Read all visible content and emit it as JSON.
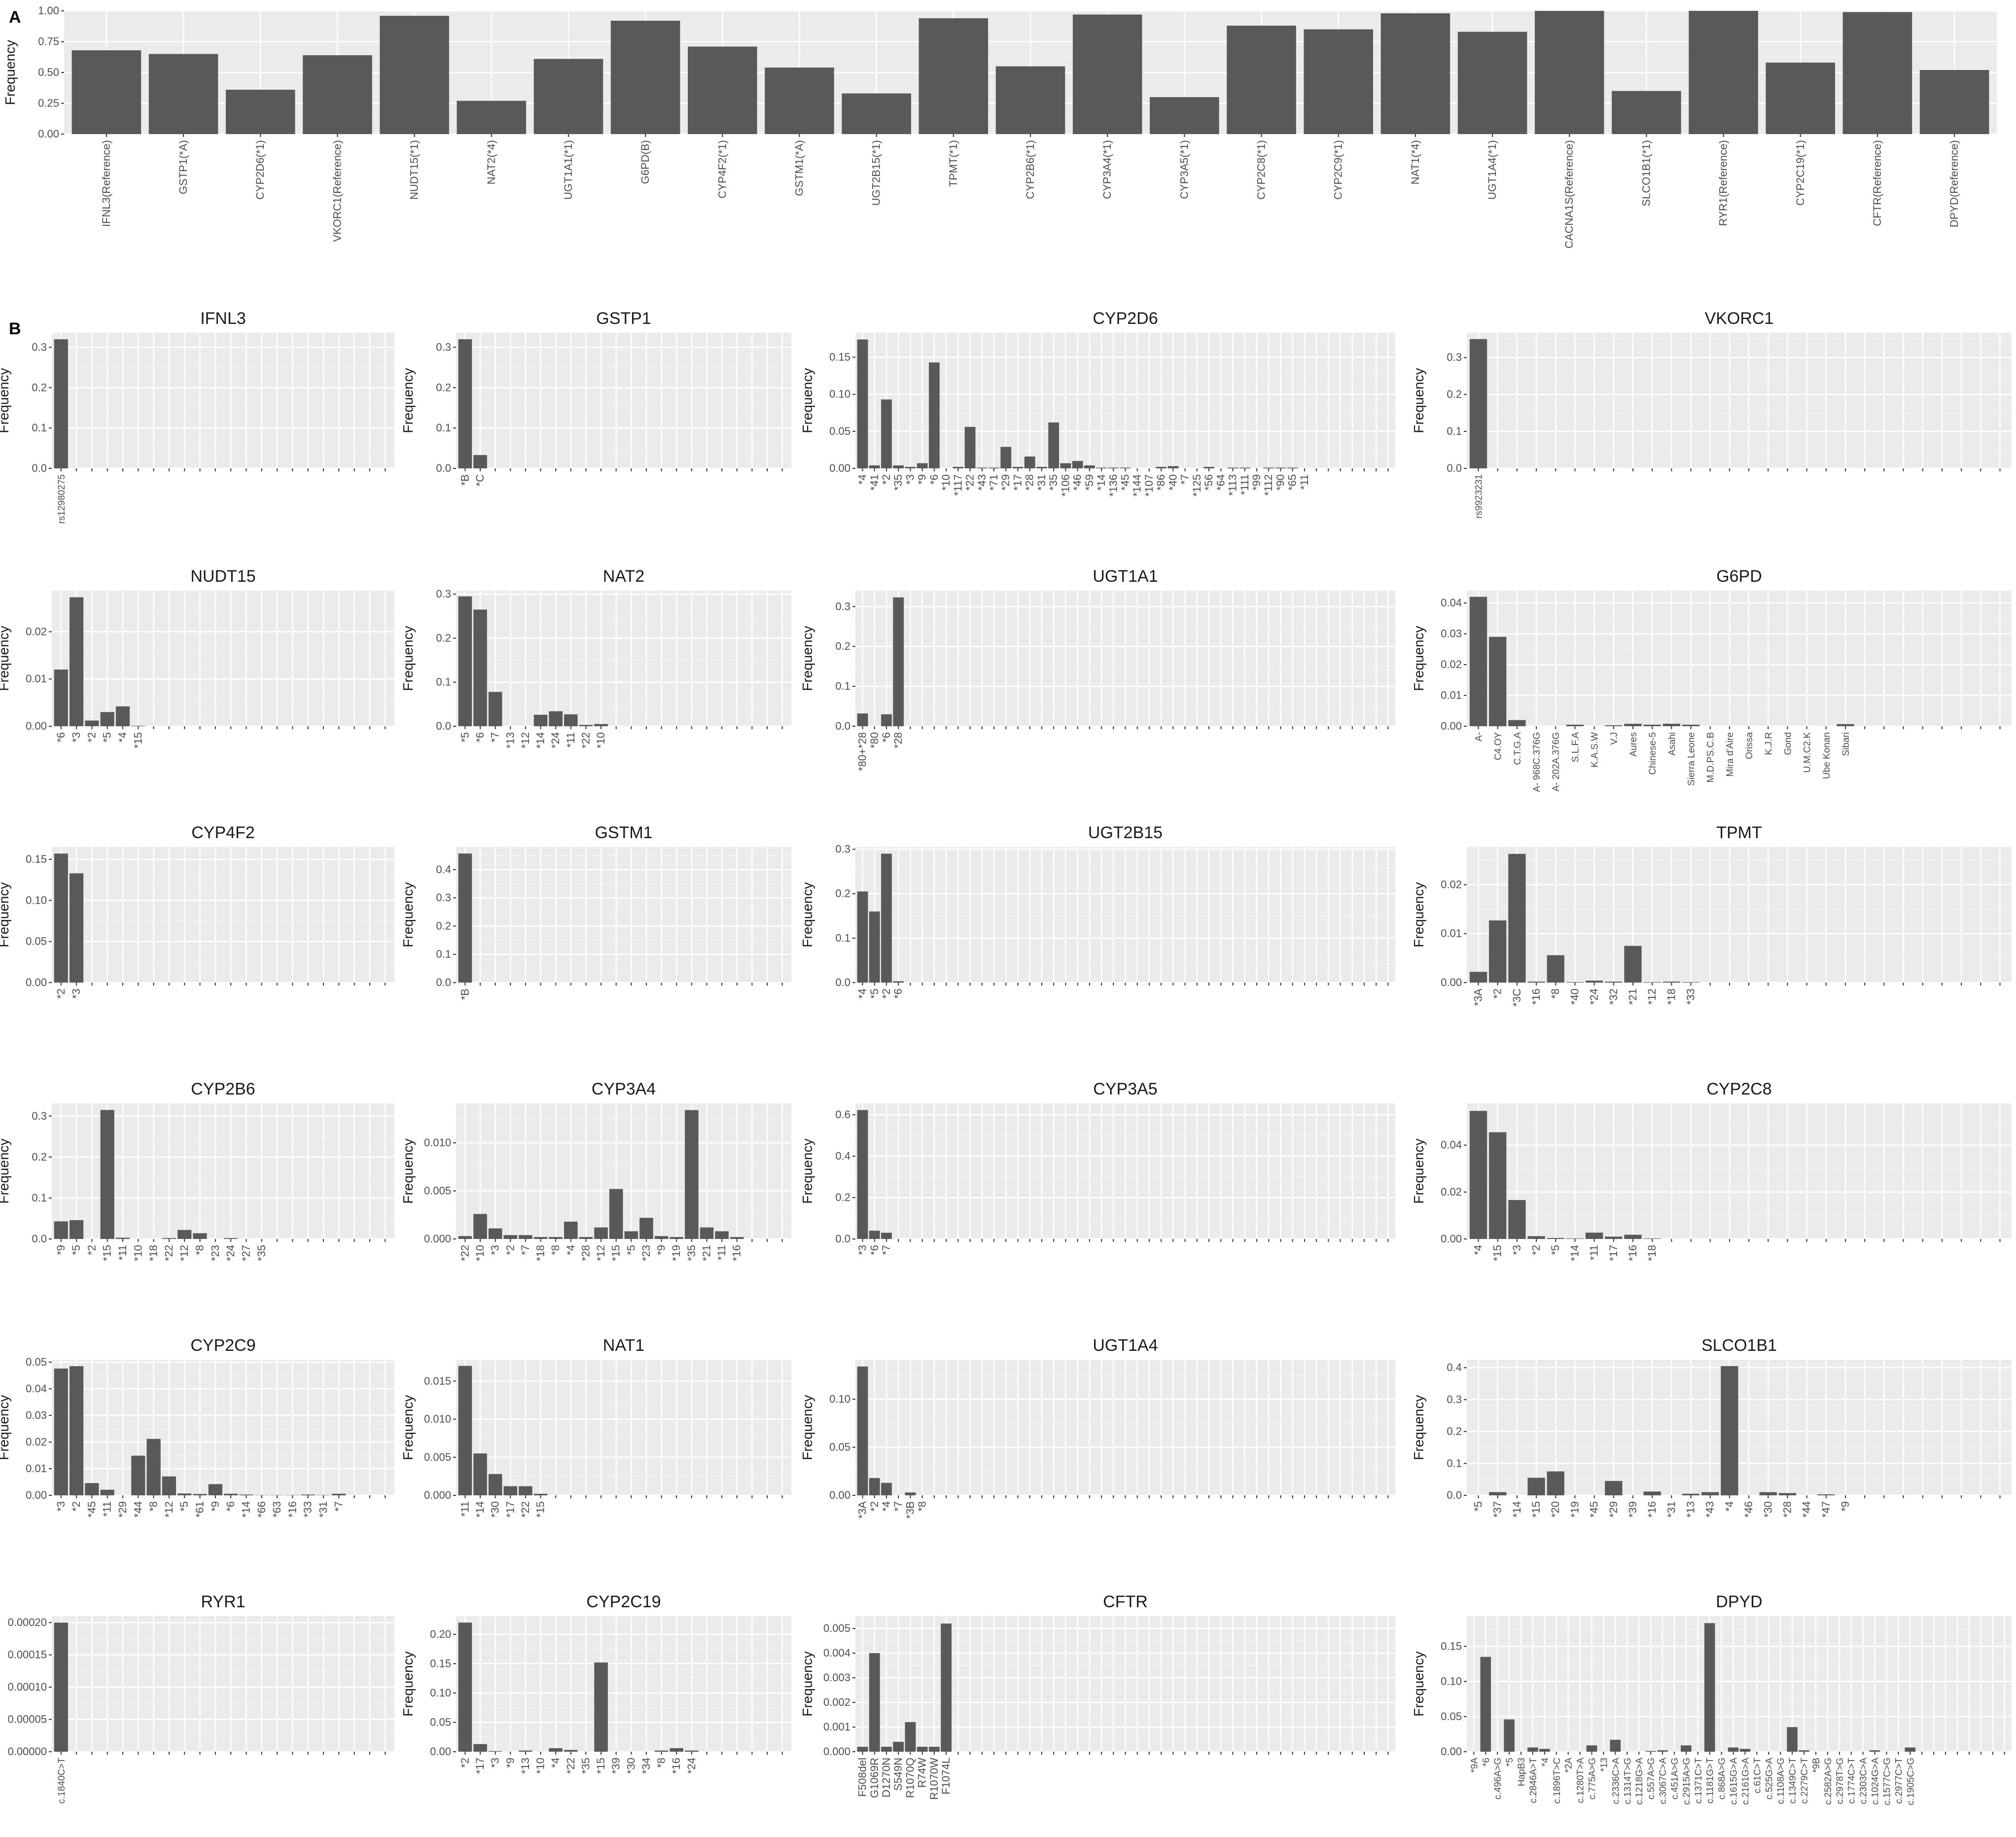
{
  "tags": {
    "a": "A",
    "b": "B"
  },
  "chart_data": [
    {
      "type": "bar",
      "panel": "A",
      "title": "",
      "ylabel": "Frequency",
      "ylim": [
        0,
        1.0
      ],
      "yticks": [
        0.0,
        0.25,
        0.5,
        0.75,
        1.0
      ],
      "ytick_labels": [
        "0.00",
        "0.25",
        "0.50",
        "0.75",
        "1.00"
      ],
      "categories": [
        "IFNL3(Reference)",
        "GSTP1(*A)",
        "CYP2D6(*1)",
        "VKORC1(Reference)",
        "NUDT15(*1)",
        "NAT2(*4)",
        "UGT1A1(*1)",
        "G6PD(B)",
        "CYP4F2(*1)",
        "GSTM1(*A)",
        "UGT2B15(*1)",
        "TPMT(*1)",
        "CYP2B6(*1)",
        "CYP3A4(*1)",
        "CYP3A5(*1)",
        "CYP2C8(*1)",
        "CYP2C9(*1)",
        "NAT1(*4)",
        "UGT1A4(*1)",
        "CACNA1S(Reference)",
        "SLCO1B1(*1)",
        "RYR1(Reference)",
        "CYP2C19(*1)",
        "CFTR(Reference)",
        "DPYD(Reference)"
      ],
      "values": [
        0.68,
        0.65,
        0.36,
        0.64,
        0.96,
        0.27,
        0.61,
        0.92,
        0.71,
        0.54,
        0.33,
        0.94,
        0.55,
        0.97,
        0.3,
        0.88,
        0.85,
        0.98,
        0.83,
        1.0,
        0.35,
        1.0,
        0.58,
        0.99,
        0.52
      ]
    },
    {
      "type": "bar",
      "title": "IFNL3",
      "ylabel": "Frequency",
      "ylim": [
        0,
        0.336
      ],
      "yticks": [
        0.0,
        0.1,
        0.2,
        0.3
      ],
      "ytick_labels": [
        "0.0",
        "0.1",
        "0.2",
        "0.3"
      ],
      "slots": 22,
      "categories": [
        "rs12980275"
      ],
      "values": [
        0.32
      ]
    },
    {
      "type": "bar",
      "title": "GSTP1",
      "ylabel": "Frequency",
      "ylim": [
        0,
        0.336
      ],
      "yticks": [
        0.0,
        0.1,
        0.2,
        0.3
      ],
      "ytick_labels": [
        "0.0",
        "0.1",
        "0.2",
        "0.3"
      ],
      "slots": 22,
      "categories": [
        "*B",
        "*C"
      ],
      "values": [
        0.32,
        0.033
      ]
    },
    {
      "type": "bar",
      "title": "CYP2D6",
      "ylabel": "Frequency",
      "ylim": [
        0,
        0.183
      ],
      "yticks": [
        0.0,
        0.05,
        0.1,
        0.15
      ],
      "ytick_labels": [
        "0.00",
        "0.05",
        "0.10",
        "0.15"
      ],
      "slots": 45,
      "categories": [
        "*4",
        "*41",
        "*2",
        "*35",
        "*3",
        "*9",
        "*6",
        "*10",
        "*117",
        "*22",
        "*43",
        "*71",
        "*29",
        "*17",
        "*28",
        "*31",
        "*35",
        "*106",
        "*46",
        "*59",
        "*14",
        "*136",
        "*45",
        "*144",
        "*107",
        "*86",
        "*40",
        "*7",
        "*125",
        "*56",
        "*64",
        "*113",
        "*111",
        "*99",
        "*112",
        "*90",
        "*65",
        "*11"
      ],
      "values": [
        0.174,
        0.004,
        0.093,
        0.004,
        0.002,
        0.007,
        0.143,
        0.0,
        0.002,
        0.056,
        0.001,
        0.001,
        0.029,
        0.002,
        0.016,
        0.002,
        0.062,
        0.007,
        0.01,
        0.004,
        0.001,
        0.001,
        0.001,
        0.0,
        0.0,
        0.002,
        0.003,
        0.0,
        0.0,
        0.002,
        0.0,
        0.001,
        0.001,
        0.0,
        0.001,
        0.001,
        0.001,
        0.0
      ]
    },
    {
      "type": "bar",
      "title": "VKORC1",
      "ylabel": "Frequency",
      "ylim": [
        0,
        0.367
      ],
      "yticks": [
        0.0,
        0.1,
        0.2,
        0.3
      ],
      "ytick_labels": [
        "0.0",
        "0.1",
        "0.2",
        "0.3"
      ],
      "slots": 28,
      "categories": [
        "rs9923231"
      ],
      "values": [
        0.35
      ]
    },
    {
      "type": "bar",
      "title": "NUDT15",
      "ylabel": "Frequency",
      "ylim": [
        0,
        0.0287
      ],
      "yticks": [
        0.0,
        0.01,
        0.02
      ],
      "ytick_labels": [
        "0.00",
        "0.01",
        "0.02"
      ],
      "slots": 22,
      "categories": [
        "*6",
        "*3",
        "*2",
        "*5",
        "*4",
        "*15"
      ],
      "values": [
        0.012,
        0.0273,
        0.0012,
        0.003,
        0.0042,
        0.0001
      ]
    },
    {
      "type": "bar",
      "title": "NAT2",
      "ylabel": "Frequency",
      "ylim": [
        0,
        0.308
      ],
      "yticks": [
        0.0,
        0.1,
        0.2,
        0.3
      ],
      "ytick_labels": [
        "0.0",
        "0.1",
        "0.2",
        "0.3"
      ],
      "slots": 22,
      "categories": [
        "*5",
        "*6",
        "*7",
        "*13",
        "*12",
        "*14",
        "*24",
        "*11",
        "*22",
        "*10"
      ],
      "values": [
        0.295,
        0.265,
        0.078,
        0.0,
        0.0,
        0.026,
        0.034,
        0.027,
        0.003,
        0.005
      ]
    },
    {
      "type": "bar",
      "title": "UGT1A1",
      "ylabel": "Frequency",
      "ylim": [
        0,
        0.34
      ],
      "yticks": [
        0.0,
        0.1,
        0.2,
        0.3
      ],
      "ytick_labels": [
        "0.0",
        "0.1",
        "0.2",
        "0.3"
      ],
      "slots": 45,
      "categories": [
        "*80+*28",
        "*80",
        "*6",
        "*28"
      ],
      "values": [
        0.032,
        0.0,
        0.03,
        0.323
      ]
    },
    {
      "type": "bar",
      "title": "G6PD",
      "ylabel": "Frequency",
      "ylim": [
        0,
        0.044
      ],
      "yticks": [
        0.0,
        0.01,
        0.02,
        0.03,
        0.04
      ],
      "ytick_labels": [
        "0.00",
        "0.01",
        "0.02",
        "0.03",
        "0.04"
      ],
      "slots": 28,
      "categories": [
        "A-",
        "C4.OY",
        "C.T.G.A",
        "A- 968C.376G",
        "A- 202A.376G",
        "S.L.F.A",
        "K.A.S.W",
        "V.J",
        "Aures",
        "Chinese-5",
        "Asahi",
        "Sierra Leone",
        "M.D.PS.C.B",
        "Mira d'Aire",
        "Orissa",
        "K.J.R",
        "Gond",
        "U.M.C2.K",
        "Ube Konan",
        "Sibari"
      ],
      "values": [
        0.042,
        0.029,
        0.002,
        0.0,
        0.0,
        0.0005,
        0.0,
        0.0003,
        0.0008,
        0.0005,
        0.0008,
        0.0005,
        0.0,
        0.0,
        0.0,
        0.0,
        0.0,
        0.0,
        0.0,
        0.0007
      ]
    },
    {
      "type": "bar",
      "title": "CYP4F2",
      "ylabel": "Frequency",
      "ylim": [
        0,
        0.165
      ],
      "yticks": [
        0.0,
        0.05,
        0.1,
        0.15
      ],
      "ytick_labels": [
        "0.00",
        "0.05",
        "0.10",
        "0.15"
      ],
      "slots": 22,
      "categories": [
        "*2",
        "*3"
      ],
      "values": [
        0.157,
        0.133
      ]
    },
    {
      "type": "bar",
      "title": "GSTM1",
      "ylabel": "Frequency",
      "ylim": [
        0,
        0.48
      ],
      "yticks": [
        0.0,
        0.1,
        0.2,
        0.3,
        0.4
      ],
      "ytick_labels": [
        "0.0",
        "0.1",
        "0.2",
        "0.3",
        "0.4"
      ],
      "slots": 22,
      "categories": [
        "*B"
      ],
      "values": [
        0.457
      ]
    },
    {
      "type": "bar",
      "title": "UGT2B15",
      "ylabel": "Frequency",
      "ylim": [
        0,
        0.305
      ],
      "yticks": [
        0.0,
        0.1,
        0.2,
        0.3
      ],
      "ytick_labels": [
        "0.0",
        "0.1",
        "0.2",
        "0.3"
      ],
      "slots": 45,
      "categories": [
        "*4",
        "*5",
        "*2",
        "*6"
      ],
      "values": [
        0.205,
        0.16,
        0.29,
        0.003
      ]
    },
    {
      "type": "bar",
      "title": "TPMT",
      "ylabel": "Frequency",
      "ylim": [
        0,
        0.0277
      ],
      "yticks": [
        0.0,
        0.01,
        0.02
      ],
      "ytick_labels": [
        "0.00",
        "0.01",
        "0.02"
      ],
      "slots": 28,
      "categories": [
        "*3A",
        "*2",
        "*3C",
        "*16",
        "*8",
        "*40",
        "*24",
        "*32",
        "*21",
        "*12",
        "*18",
        "*33"
      ],
      "values": [
        0.0022,
        0.0127,
        0.0263,
        0.0002,
        0.0056,
        0.0001,
        0.0004,
        0.0002,
        0.0075,
        0.0001,
        0.0002,
        0.0001
      ]
    },
    {
      "type": "bar",
      "title": "CYP2B6",
      "ylabel": "Frequency",
      "ylim": [
        0,
        0.331
      ],
      "yticks": [
        0.0,
        0.1,
        0.2,
        0.3
      ],
      "ytick_labels": [
        "0.0",
        "0.1",
        "0.2",
        "0.3"
      ],
      "slots": 22,
      "categories": [
        "*9",
        "*5",
        "*2",
        "*15",
        "*11",
        "*10",
        "*18",
        "*22",
        "*12",
        "*8",
        "*23",
        "*24",
        "*27",
        "*35"
      ],
      "values": [
        0.043,
        0.046,
        0.0,
        0.315,
        0.003,
        0.0,
        0.0,
        0.002,
        0.022,
        0.014,
        0.0,
        0.002,
        0.0,
        0.0
      ]
    },
    {
      "type": "bar",
      "title": "CYP3A4",
      "ylabel": "Frequency",
      "ylim": [
        0,
        0.0141
      ],
      "yticks": [
        0.0,
        0.005,
        0.01
      ],
      "ytick_labels": [
        "0.000",
        "0.005",
        "0.010"
      ],
      "slots": 22,
      "categories": [
        "*22",
        "*10",
        "*3",
        "*2",
        "*7",
        "*18",
        "*8",
        "*4",
        "*28",
        "*12",
        "*15",
        "*5",
        "*23",
        "*9",
        "*19",
        "*35",
        "*21",
        "*11",
        "*16"
      ],
      "values": [
        0.0003,
        0.0026,
        0.0011,
        0.0004,
        0.0004,
        0.0002,
        0.0002,
        0.0018,
        0.0002,
        0.0012,
        0.0052,
        0.0008,
        0.0022,
        0.0003,
        0.0002,
        0.0134,
        0.0012,
        0.0008,
        0.0002
      ]
    },
    {
      "type": "bar",
      "title": "CYP3A5",
      "ylabel": "Frequency",
      "ylim": [
        0,
        0.655
      ],
      "yticks": [
        0.0,
        0.2,
        0.4,
        0.6
      ],
      "ytick_labels": [
        "0.0",
        "0.2",
        "0.4",
        "0.6"
      ],
      "slots": 45,
      "categories": [
        "*3",
        "*6",
        "*7"
      ],
      "values": [
        0.623,
        0.04,
        0.03
      ]
    },
    {
      "type": "bar",
      "title": "CYP2C8",
      "ylabel": "Frequency",
      "ylim": [
        0,
        0.0578
      ],
      "yticks": [
        0.0,
        0.02,
        0.04
      ],
      "ytick_labels": [
        "0.00",
        "0.02",
        "0.04"
      ],
      "slots": 28,
      "categories": [
        "*4",
        "*15",
        "*3",
        "*2",
        "*5",
        "*14",
        "*11",
        "*17",
        "*16",
        "*18"
      ],
      "values": [
        0.0546,
        0.0455,
        0.0166,
        0.0012,
        0.0004,
        0.0002,
        0.0027,
        0.001,
        0.0018,
        0.0002
      ]
    },
    {
      "type": "bar",
      "title": "CYP2C9",
      "ylabel": "Frequency",
      "ylim": [
        0,
        0.0509
      ],
      "yticks": [
        0.0,
        0.01,
        0.02,
        0.03,
        0.04,
        0.05
      ],
      "ytick_labels": [
        "0.00",
        "0.01",
        "0.02",
        "0.03",
        "0.04",
        "0.05"
      ],
      "slots": 22,
      "categories": [
        "*3",
        "*2",
        "*45",
        "*11",
        "*29",
        "*44",
        "*8",
        "*12",
        "*5",
        "*61",
        "*9",
        "*6",
        "*14",
        "*66",
        "*63",
        "*16",
        "*33",
        "*31",
        "*7"
      ],
      "values": [
        0.0476,
        0.0485,
        0.0046,
        0.0021,
        0.0,
        0.0149,
        0.0212,
        0.0071,
        0.0007,
        0.0005,
        0.0042,
        0.0006,
        0.0003,
        0.0001,
        0.0001,
        0.0001,
        0.0003,
        0.0001,
        0.0006
      ]
    },
    {
      "type": "bar",
      "title": "NAT1",
      "ylabel": "Frequency",
      "ylim": [
        0,
        0.0178
      ],
      "yticks": [
        0.0,
        0.005,
        0.01,
        0.015
      ],
      "ytick_labels": [
        "0.000",
        "0.005",
        "0.010",
        "0.015"
      ],
      "slots": 22,
      "categories": [
        "*11",
        "*14",
        "*30",
        "*17",
        "*22",
        "*15"
      ],
      "values": [
        0.017,
        0.0055,
        0.0028,
        0.0012,
        0.0012,
        0.0002
      ]
    },
    {
      "type": "bar",
      "title": "UGT1A4",
      "ylabel": "Frequency",
      "ylim": [
        0,
        0.141
      ],
      "yticks": [
        0.0,
        0.05,
        0.1
      ],
      "ytick_labels": [
        "0.00",
        "0.05",
        "0.10"
      ],
      "slots": 45,
      "categories": [
        "*3A",
        "*2",
        "*4",
        "*7",
        "*3B",
        "*8"
      ],
      "values": [
        0.134,
        0.018,
        0.013,
        0.0,
        0.003,
        0.0
      ]
    },
    {
      "type": "bar",
      "title": "SLCO1B1",
      "ylabel": "Frequency",
      "ylim": [
        0,
        0.425
      ],
      "yticks": [
        0.0,
        0.1,
        0.2,
        0.3,
        0.4
      ],
      "ytick_labels": [
        "0.0",
        "0.1",
        "0.2",
        "0.3",
        "0.4"
      ],
      "slots": 28,
      "categories": [
        "*5",
        "*37",
        "*14",
        "*15",
        "*20",
        "*19",
        "*45",
        "*29",
        "*39",
        "*16",
        "*31",
        "*13",
        "*43",
        "*4",
        "*46",
        "*30",
        "*28",
        "*44",
        "*47",
        "*9"
      ],
      "values": [
        0.0,
        0.01,
        0.0,
        0.055,
        0.075,
        0.0,
        0.0,
        0.045,
        0.0,
        0.012,
        0.0,
        0.005,
        0.01,
        0.405,
        0.0,
        0.01,
        0.007,
        0.0,
        0.003,
        0.0
      ]
    },
    {
      "type": "bar",
      "title": "RYR1",
      "ylabel": "Frequency",
      "ylim": [
        0,
        0.00021
      ],
      "yticks": [
        0.0,
        5e-05,
        0.0001,
        0.00015,
        0.0002
      ],
      "ytick_labels": [
        "0.00000",
        "0.00005",
        "0.00010",
        "0.00015",
        "0.00020"
      ],
      "slots": 22,
      "categories": [
        "c.1840C>T"
      ],
      "values": [
        0.0002
      ]
    },
    {
      "type": "bar",
      "title": "CYP2C19",
      "ylabel": "Frequency",
      "ylim": [
        0,
        0.231
      ],
      "yticks": [
        0.0,
        0.05,
        0.1,
        0.15,
        0.2
      ],
      "ytick_labels": [
        "0.00",
        "0.05",
        "0.10",
        "0.15",
        "0.20"
      ],
      "slots": 22,
      "categories": [
        "*2",
        "*17",
        "*3",
        "*9",
        "*13",
        "*10",
        "*4",
        "*22",
        "*35",
        "*15",
        "*39",
        "*30",
        "*34",
        "*8",
        "*16",
        "*24"
      ],
      "values": [
        0.22,
        0.013,
        0.001,
        0.0,
        0.002,
        0.0,
        0.006,
        0.003,
        0.0,
        0.152,
        0.0,
        0.0,
        0.0,
        0.002,
        0.006,
        0.002
      ]
    },
    {
      "type": "bar",
      "title": "CFTR",
      "ylabel": "Frequency",
      "ylim": [
        0,
        0.0055
      ],
      "yticks": [
        0.0,
        0.001,
        0.002,
        0.003,
        0.004,
        0.005
      ],
      "ytick_labels": [
        "0.000",
        "0.001",
        "0.002",
        "0.003",
        "0.004",
        "0.005"
      ],
      "slots": 45,
      "categories": [
        "F508del",
        "G1069R",
        "D1270N",
        "S549N",
        "R1070Q",
        "R74W",
        "R1070W",
        "F1074L"
      ],
      "values": [
        0.0002,
        0.004,
        0.0002,
        0.0004,
        0.0012,
        0.0002,
        0.0002,
        0.0052
      ]
    },
    {
      "type": "bar",
      "title": "DPYD",
      "ylabel": "Frequency",
      "ylim": [
        0,
        0.193
      ],
      "yticks": [
        0.0,
        0.05,
        0.1,
        0.15
      ],
      "ytick_labels": [
        "0.00",
        "0.05",
        "0.10",
        "0.15"
      ],
      "slots": 46,
      "categories": [
        "*9A",
        "*6",
        "c.496A>G",
        "*5",
        "HapB3",
        "c.2846A>T",
        "*4",
        "c.1896T>C",
        "*2A",
        "c.1280T>A",
        "c.775A>G",
        "*13",
        "c.2336C>A",
        "c.1314T>G",
        "c.1218G>A",
        "c.557A>G",
        "c.3067C>A",
        "c.451A>G",
        "c.2915A>G",
        "c.1371C>T",
        "c.1181G>T",
        "c.868A>G",
        "c.1615G>A",
        "c.2161G>A",
        "c.61C>T",
        "c.525G>A",
        "c.1108A>G",
        "c.1349C>T",
        "c.2279C>T",
        "*9B",
        "c.2582A>G",
        "c.2978T>G",
        "c.1774C>T",
        "c.2303C>A",
        "c.1024G>A",
        "c.1577C>G",
        "c.2977C>T",
        "c.1905C>G"
      ],
      "values": [
        0.0,
        0.135,
        0.0,
        0.046,
        0.0,
        0.006,
        0.004,
        0.0,
        0.0,
        0.0,
        0.009,
        0.0,
        0.017,
        0.0,
        0.0,
        0.001,
        0.002,
        0.0,
        0.009,
        0.0,
        0.183,
        0.0,
        0.006,
        0.004,
        0.0,
        0.0,
        0.0,
        0.035,
        0.002,
        0.0,
        0.0,
        0.0,
        0.0,
        0.0,
        0.002,
        0.0,
        0.0,
        0.006
      ]
    }
  ]
}
